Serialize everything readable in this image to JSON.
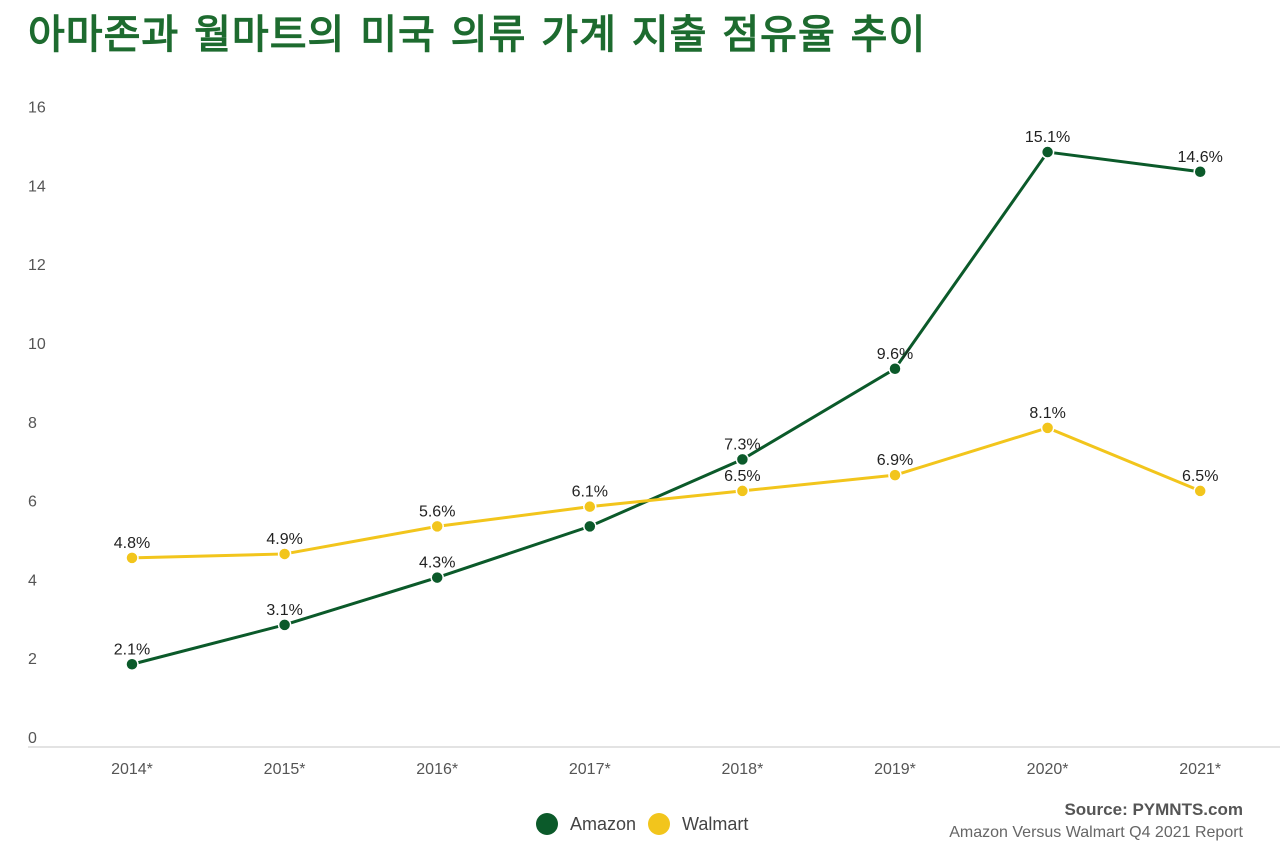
{
  "title": "아마존과 월마트의 미국 의류 가계 지출 점유율 추이",
  "chart_data": {
    "type": "line",
    "title": "아마존과 월마트의 미국 의류 가계 지출 점유율 추이",
    "categories": [
      "2014*",
      "2015*",
      "2016*",
      "2017*",
      "2018*",
      "2019*",
      "2020*",
      "2021*"
    ],
    "yticks": [
      "0",
      "2",
      "4",
      "6",
      "8",
      "10",
      "12",
      "14",
      "16"
    ],
    "ylim": [
      0,
      16
    ],
    "grid": false,
    "legend": "bottom-center",
    "series": [
      {
        "name": "Amazon",
        "color": "#0b5a2a",
        "values": [
          2.1,
          3.1,
          4.3,
          5.6,
          7.3,
          9.6,
          15.1,
          14.6
        ],
        "labels": [
          "2.1%",
          "3.1%",
          "4.3%",
          "",
          "7.3%",
          "9.6%",
          "15.1%",
          "14.6%"
        ]
      },
      {
        "name": "Walmart",
        "color": "#f2c51c",
        "values": [
          4.8,
          4.9,
          5.6,
          6.1,
          6.5,
          6.9,
          8.1,
          6.5
        ],
        "labels": [
          "4.8%",
          "4.9%",
          "5.6%",
          "6.1%",
          "6.5%",
          "6.9%",
          "8.1%",
          "6.5%"
        ]
      }
    ]
  },
  "source": {
    "line1": "Source: PYMNTS.com",
    "line2": "Amazon Versus Walmart Q4 2021 Report"
  }
}
